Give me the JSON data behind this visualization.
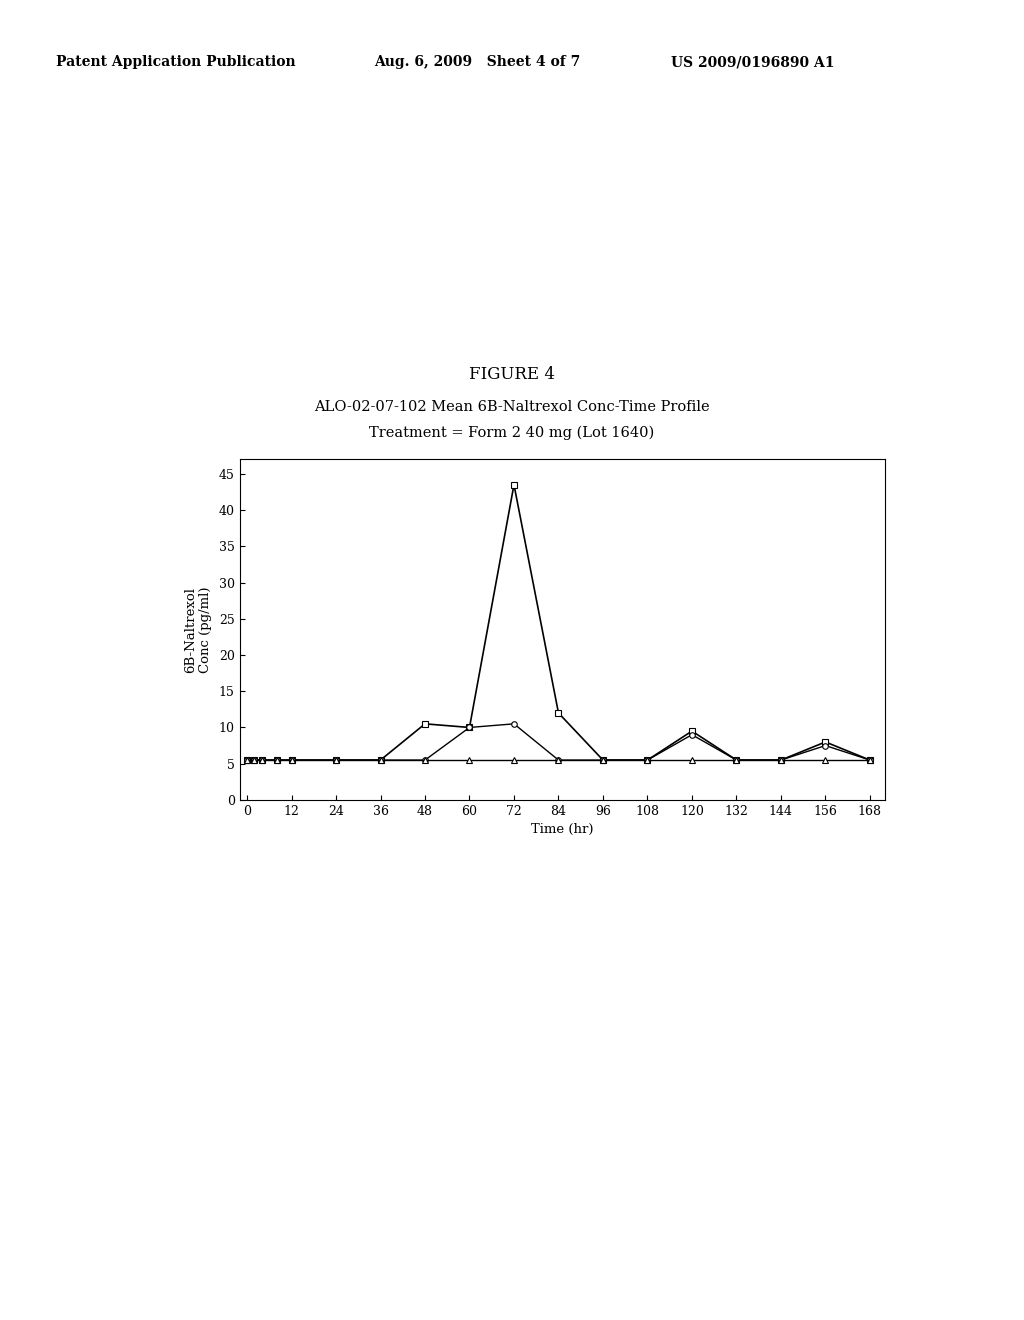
{
  "figure_label": "FIGURE 4",
  "chart_title_line1": "ALO-02-07-102 Mean 6B-Naltrexol Conc-Time Profile",
  "chart_title_line2": "Treatment = Form 2 40 mg (Lot 1640)",
  "ylabel": "6B-Naltrexol\nConc (pg/ml)",
  "xlabel": "Time (hr)",
  "header_left": "Patent Application Publication",
  "header_mid": "Aug. 6, 2009   Sheet 4 of 7",
  "header_right": "US 2009/0196890 A1",
  "yticks": [
    0,
    5,
    10,
    15,
    20,
    25,
    30,
    35,
    40,
    45
  ],
  "xticks": [
    0,
    12,
    24,
    36,
    48,
    60,
    72,
    84,
    96,
    108,
    120,
    132,
    144,
    156,
    168
  ],
  "ylim": [
    0,
    47
  ],
  "xlim": [
    -2,
    172
  ],
  "series1_x": [
    0,
    2,
    4,
    8,
    12,
    24,
    36,
    48,
    60,
    72,
    84,
    96,
    108,
    120,
    132,
    144,
    156,
    168
  ],
  "series1_y": [
    5.5,
    5.5,
    5.5,
    5.5,
    5.5,
    5.5,
    5.5,
    10.5,
    10.0,
    43.5,
    12.0,
    5.5,
    5.5,
    9.5,
    5.5,
    5.5,
    8.0,
    5.5
  ],
  "series2_x": [
    0,
    2,
    4,
    8,
    12,
    24,
    36,
    48,
    60,
    72,
    84,
    96,
    108,
    120,
    132,
    144,
    156,
    168
  ],
  "series2_y": [
    5.5,
    5.5,
    5.5,
    5.5,
    5.5,
    5.5,
    5.5,
    5.5,
    10.0,
    10.5,
    5.5,
    5.5,
    5.5,
    9.0,
    5.5,
    5.5,
    7.5,
    5.5
  ],
  "series3_x": [
    0,
    2,
    4,
    8,
    12,
    24,
    36,
    48,
    60,
    72,
    84,
    96,
    108,
    120,
    132,
    144,
    156,
    168
  ],
  "series3_y": [
    5.5,
    5.5,
    5.5,
    5.5,
    5.5,
    5.5,
    5.5,
    5.5,
    5.5,
    5.5,
    5.5,
    5.5,
    5.5,
    5.5,
    5.5,
    5.5,
    5.5,
    5.5
  ],
  "background_color": "#ffffff",
  "fig_width": 10.24,
  "fig_height": 13.2,
  "dpi": 100,
  "header_fontsize": 10,
  "figure_label_fontsize": 12,
  "title_fontsize": 10.5,
  "axis_label_fontsize": 9.5,
  "tick_fontsize": 9
}
